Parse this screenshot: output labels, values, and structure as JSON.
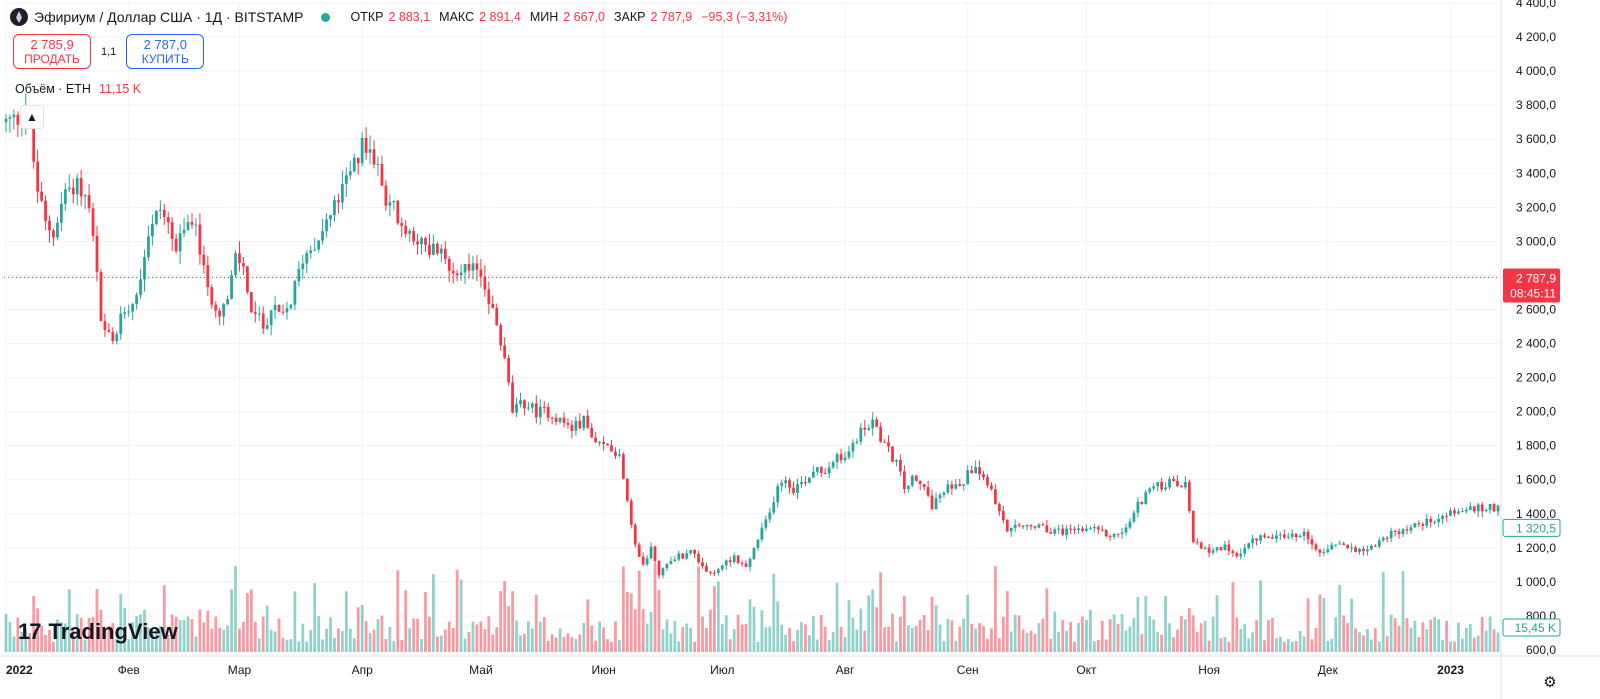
{
  "header": {
    "symbol_title": "Эфириум / Доллар США · 1Д · BITSTAMP",
    "ohlc": [
      {
        "label": "ОТКР",
        "value": "2 883,1"
      },
      {
        "label": "МАКС",
        "value": "2 891,4"
      },
      {
        "label": "МИН",
        "value": "2 667,0"
      },
      {
        "label": "ЗАКР",
        "value": "2 787,9"
      },
      {
        "label": "",
        "value": "−95,3 (−3,31%)"
      }
    ]
  },
  "trade": {
    "sell_price": "2 785,9",
    "sell_label": "ПРОДАТЬ",
    "spread": "1,1",
    "buy_price": "2 787,0",
    "buy_label": "КУПИТЬ"
  },
  "volume_legend": {
    "label": "Объём · ETH",
    "value": "11,15 K"
  },
  "brand": {
    "name": "TradingView"
  },
  "colors": {
    "up": "#26a69a",
    "down": "#f23645",
    "grid": "#f0f3fa",
    "text": "#131722"
  },
  "icons": {
    "collapse": "chevron-up-icon",
    "settings": "gear-icon",
    "logo": "tradingview-logo-icon",
    "symbol": "ethereum-icon"
  },
  "chart_data": {
    "type": "candlestick",
    "title": "Эфириум / Доллар США · 1Д · BITSTAMP",
    "y_axis_labels": [
      "4 400,0",
      "4 200,0",
      "4 000,0",
      "3 800,0",
      "3 600,0",
      "3 400,0",
      "3 200,0",
      "3 000,0",
      "2 800,0",
      "2 600,0",
      "2 400,0",
      "2 200,0",
      "2 000,0",
      "1 800,0",
      "1 600,0",
      "1 400,0",
      "1 200,0",
      "1 000,0",
      "800,0",
      "600,0"
    ],
    "y_axis_values": [
      4400,
      4200,
      4000,
      3800,
      3600,
      3400,
      3200,
      3000,
      2800,
      2600,
      2400,
      2200,
      2000,
      1800,
      1600,
      1400,
      1200,
      1000,
      800,
      600
    ],
    "ylim": [
      600,
      4400
    ],
    "x_labels": [
      {
        "label": "2022",
        "day": 0,
        "bold": true
      },
      {
        "label": "Фев",
        "day": 31
      },
      {
        "label": "Мар",
        "day": 59
      },
      {
        "label": "Апр",
        "day": 90
      },
      {
        "label": "Май",
        "day": 120
      },
      {
        "label": "Июн",
        "day": 151
      },
      {
        "label": "Июл",
        "day": 181
      },
      {
        "label": "Авг",
        "day": 212
      },
      {
        "label": "Сен",
        "day": 243
      },
      {
        "label": "Окт",
        "day": 273
      },
      {
        "label": "Ноя",
        "day": 304
      },
      {
        "label": "Дек",
        "day": 334
      },
      {
        "label": "2023",
        "day": 365,
        "bold": true
      }
    ],
    "total_days": 378,
    "anchors": [
      [
        0,
        3700
      ],
      [
        3,
        3720
      ],
      [
        5,
        3800
      ],
      [
        8,
        3300
      ],
      [
        10,
        3100
      ],
      [
        12,
        3050
      ],
      [
        15,
        3300
      ],
      [
        18,
        3350
      ],
      [
        21,
        3200
      ],
      [
        23,
        2800
      ],
      [
        24,
        2500
      ],
      [
        27,
        2400
      ],
      [
        30,
        2600
      ],
      [
        33,
        2700
      ],
      [
        36,
        3050
      ],
      [
        39,
        3200
      ],
      [
        41,
        3100
      ],
      [
        43,
        2950
      ],
      [
        47,
        3150
      ],
      [
        49,
        2950
      ],
      [
        51,
        2700
      ],
      [
        54,
        2600
      ],
      [
        56,
        2650
      ],
      [
        58,
        2900
      ],
      [
        60,
        2850
      ],
      [
        62,
        2600
      ],
      [
        65,
        2500
      ],
      [
        67,
        2600
      ],
      [
        70,
        2550
      ],
      [
        72,
        2650
      ],
      [
        75,
        2900
      ],
      [
        78,
        3000
      ],
      [
        82,
        3150
      ],
      [
        85,
        3300
      ],
      [
        88,
        3450
      ],
      [
        90,
        3550
      ],
      [
        93,
        3500
      ],
      [
        95,
        3300
      ],
      [
        98,
        3200
      ],
      [
        100,
        3050
      ],
      [
        103,
        3050
      ],
      [
        106,
        2950
      ],
      [
        109,
        2950
      ],
      [
        112,
        2850
      ],
      [
        115,
        2850
      ],
      [
        117,
        2800
      ],
      [
        119,
        2850
      ],
      [
        121,
        2750
      ],
      [
        124,
        2500
      ],
      [
        126,
        2300
      ],
      [
        128,
        2000
      ],
      [
        131,
        2050
      ],
      [
        134,
        2000
      ],
      [
        137,
        2000
      ],
      [
        140,
        1950
      ],
      [
        143,
        1900
      ],
      [
        146,
        1950
      ],
      [
        149,
        1800
      ],
      [
        152,
        1800
      ],
      [
        155,
        1750
      ],
      [
        157,
        1500
      ],
      [
        159,
        1200
      ],
      [
        161,
        1100
      ],
      [
        163,
        1200
      ],
      [
        165,
        1050
      ],
      [
        167,
        1100
      ],
      [
        169,
        1150
      ],
      [
        171,
        1150
      ],
      [
        173,
        1200
      ],
      [
        175,
        1100
      ],
      [
        177,
        1050
      ],
      [
        179,
        1050
      ],
      [
        181,
        1100
      ],
      [
        184,
        1150
      ],
      [
        187,
        1080
      ],
      [
        190,
        1250
      ],
      [
        193,
        1400
      ],
      [
        195,
        1580
      ],
      [
        197,
        1600
      ],
      [
        199,
        1550
      ],
      [
        202,
        1600
      ],
      [
        205,
        1680
      ],
      [
        207,
        1650
      ],
      [
        209,
        1720
      ],
      [
        212,
        1730
      ],
      [
        215,
        1850
      ],
      [
        217,
        1900
      ],
      [
        219,
        1950
      ],
      [
        222,
        1800
      ],
      [
        225,
        1700
      ],
      [
        227,
        1550
      ],
      [
        229,
        1600
      ],
      [
        232,
        1550
      ],
      [
        234,
        1450
      ],
      [
        236,
        1500
      ],
      [
        238,
        1550
      ],
      [
        240,
        1580
      ],
      [
        242,
        1600
      ],
      [
        245,
        1700
      ],
      [
        247,
        1620
      ],
      [
        249,
        1550
      ],
      [
        251,
        1400
      ],
      [
        253,
        1300
      ],
      [
        256,
        1320
      ],
      [
        259,
        1330
      ],
      [
        262,
        1310
      ],
      [
        265,
        1300
      ],
      [
        267,
        1300
      ],
      [
        270,
        1310
      ],
      [
        272,
        1300
      ],
      [
        275,
        1300
      ],
      [
        278,
        1280
      ],
      [
        280,
        1270
      ],
      [
        283,
        1310
      ],
      [
        286,
        1450
      ],
      [
        289,
        1550
      ],
      [
        291,
        1560
      ],
      [
        294,
        1580
      ],
      [
        296,
        1570
      ],
      [
        298,
        1560
      ],
      [
        300,
        1250
      ],
      [
        302,
        1180
      ],
      [
        304,
        1190
      ],
      [
        306,
        1200
      ],
      [
        308,
        1200
      ],
      [
        310,
        1150
      ],
      [
        312,
        1180
      ],
      [
        314,
        1220
      ],
      [
        316,
        1250
      ],
      [
        318,
        1280
      ],
      [
        320,
        1270
      ],
      [
        322,
        1280
      ],
      [
        324,
        1260
      ],
      [
        326,
        1270
      ],
      [
        328,
        1280
      ],
      [
        330,
        1200
      ],
      [
        332,
        1180
      ],
      [
        334,
        1200
      ],
      [
        336,
        1210
      ],
      [
        338,
        1210
      ],
      [
        340,
        1200
      ],
      [
        342,
        1190
      ],
      [
        344,
        1200
      ],
      [
        346,
        1220
      ],
      [
        348,
        1260
      ],
      [
        352,
        1300
      ],
      [
        356,
        1330
      ],
      [
        362,
        1380
      ],
      [
        367,
        1420
      ],
      [
        372,
        1430
      ],
      [
        378,
        1440
      ]
    ],
    "price_tags": [
      {
        "value": 2787.9,
        "text": "2 787,9",
        "sub": "08:45:11",
        "style": "down"
      },
      {
        "value": 1320.5,
        "text": "1 320,5",
        "style": "up-outline"
      }
    ],
    "volume_tag": {
      "text": "15,45 K",
      "style": "up-outline"
    },
    "volume_label": "Объём · ETH",
    "last_volume": "11,15 K"
  }
}
